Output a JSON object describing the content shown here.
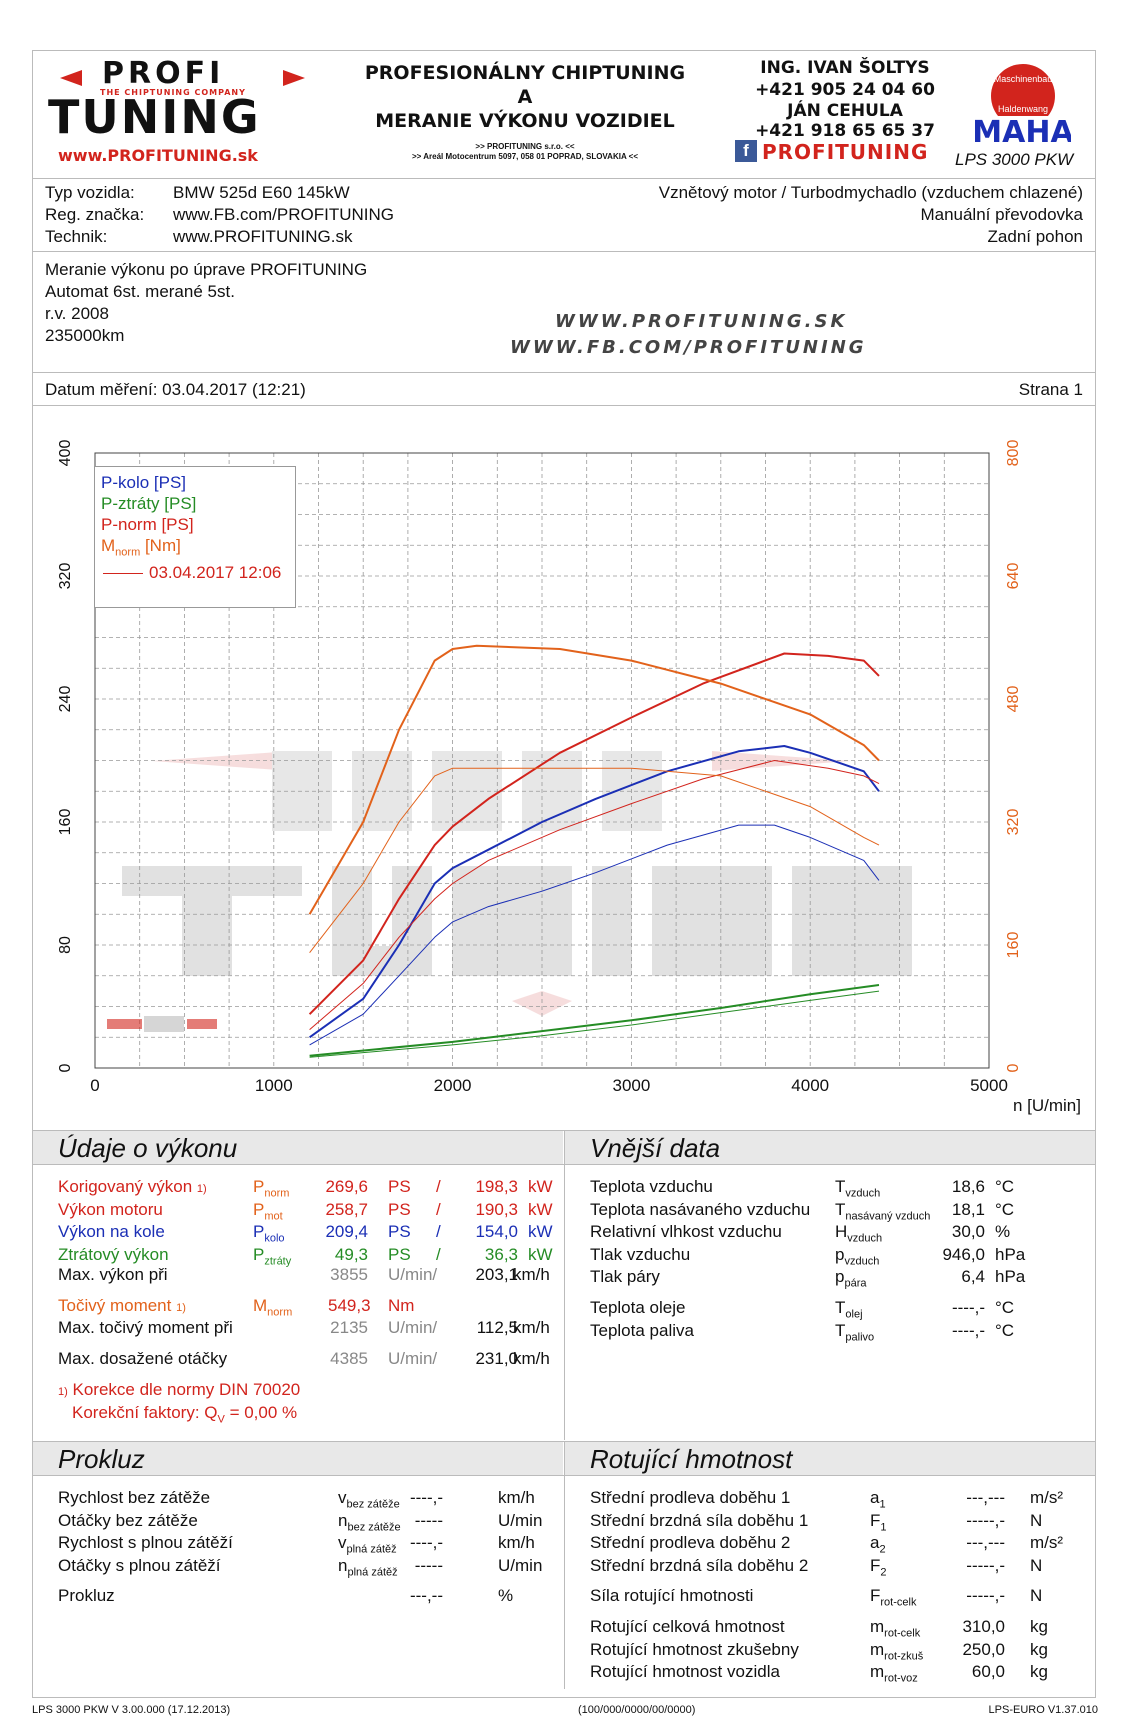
{
  "header": {
    "logo_profi": "PROFI",
    "logo_tuning": "TUNING",
    "logo_tagline": "THE CHIPTUNING COMPANY",
    "logo_url": "www.PROFITUNING.sk",
    "title_line1": "PROFESIONÁLNY CHIPTUNING",
    "title_line2": "A",
    "title_line3": "MERANIE VÝKONU VOZIDIEL",
    "address_line1": ">> PROFITUNING s.r.o. <<",
    "address_line2": ">> Areál Motocentrum 5097, 058 01 POPRAD, SLOVAKIA <<",
    "contact_name1": "ING. IVAN ŠOLTYS",
    "contact_phone1": "+421 905 24 04 60",
    "contact_name2": "JÁN CEHULA",
    "contact_phone2": "+421 918 65 65 37",
    "fb_label": "PROFITUNING",
    "maha_brand": "MAHA",
    "maha_ring_top": "Maschinenbau",
    "maha_ring_bottom": "Haldenwang",
    "maha_model": "LPS 3000 PKW"
  },
  "vehicle": {
    "type_label": "Typ vozidla:",
    "type_value": "BMW 525d E60 145kW",
    "reg_label": "Reg. značka:",
    "reg_value": "www.FB.com/PROFITUNING",
    "tech_label": "Technik:",
    "tech_value": "www.PROFITUNING.sk",
    "engine": "Vznětový motor / Turbodmychadlo (vzduchem chlazené)",
    "gearbox": "Manuální převodovka",
    "drive": "Zadní pohon"
  },
  "notes": {
    "line1": "Meranie výkonu po úprave PROFITUNING",
    "line2": "Automat 6st. merané 5st.",
    "line3": "r.v. 2008",
    "line4": "235000km",
    "url1": "WWW.PROFITUNING.SK",
    "url2": "WWW.FB.COM/PROFITUNING"
  },
  "meta": {
    "date": "Datum měření: 03.04.2017 (12:21)",
    "page": "Strana 1"
  },
  "chart_data": {
    "type": "line",
    "x_label": "n [U/min]",
    "xlim": [
      0,
      5000
    ],
    "ylim_left": [
      0,
      400
    ],
    "ylim_right": [
      0,
      800
    ],
    "x_ticks": [
      "0",
      "1000",
      "2000",
      "3000",
      "4000",
      "5000"
    ],
    "y_ticks_left": [
      "0",
      "80",
      "160",
      "240",
      "320",
      "400"
    ],
    "y_ticks_right": [
      "0",
      "160",
      "320",
      "480",
      "640",
      "800"
    ],
    "legend": [
      {
        "label": "P-kolo [PS]",
        "color": "#1b2fb5"
      },
      {
        "label": "P-ztráty [PS]",
        "color": "#258c25"
      },
      {
        "label": "P-norm [PS]",
        "color": "#d2241d"
      },
      {
        "label": "M",
        "sub": "norm",
        "suffix": " [Nm]",
        "color": "#e2621b"
      }
    ],
    "legend_run": "03.04.2017 12:06",
    "series": [
      {
        "name": "P-kolo [PS]",
        "axis": "left",
        "color": "#1b2fb5",
        "width": 2,
        "x": [
          1200,
          1500,
          1700,
          1900,
          2000,
          2200,
          2500,
          2800,
          3200,
          3600,
          3855,
          4000,
          4300,
          4385
        ],
        "y": [
          20,
          45,
          80,
          120,
          130,
          142,
          160,
          175,
          193,
          206,
          209.4,
          205,
          193,
          180
        ]
      },
      {
        "name": "P-kolo [PS] ref",
        "axis": "left",
        "color": "#1b2fb5",
        "width": 1,
        "x": [
          1200,
          1500,
          1700,
          1900,
          2000,
          2200,
          2500,
          2800,
          3200,
          3600,
          3800,
          4000,
          4300,
          4385
        ],
        "y": [
          15,
          35,
          60,
          85,
          95,
          105,
          115,
          127,
          145,
          158,
          158,
          150,
          135,
          122
        ]
      },
      {
        "name": "P-ztráty [PS]",
        "axis": "left",
        "color": "#258c25",
        "width": 2,
        "x": [
          1200,
          2000,
          2500,
          3000,
          3500,
          4000,
          4385
        ],
        "y": [
          8,
          17,
          24,
          31,
          39,
          48,
          54
        ]
      },
      {
        "name": "P-ztráty [PS] ref",
        "axis": "left",
        "color": "#258c25",
        "width": 1,
        "x": [
          1200,
          2000,
          2500,
          3000,
          3500,
          4000,
          4385
        ],
        "y": [
          7,
          15,
          21,
          28,
          36,
          44,
          50
        ]
      },
      {
        "name": "P-norm [PS]",
        "axis": "left",
        "color": "#d2241d",
        "width": 2,
        "x": [
          1200,
          1500,
          1700,
          1900,
          2000,
          2200,
          2600,
          3000,
          3400,
          3855,
          4100,
          4300,
          4385
        ],
        "y": [
          35,
          70,
          110,
          145,
          157,
          175,
          205,
          228,
          250,
          269.6,
          268,
          265,
          255
        ]
      },
      {
        "name": "P-norm [PS] ref",
        "axis": "left",
        "color": "#d2241d",
        "width": 1,
        "x": [
          1200,
          1500,
          1700,
          1900,
          2000,
          2200,
          2600,
          3000,
          3400,
          3800,
          4100,
          4300,
          4385
        ],
        "y": [
          25,
          55,
          85,
          110,
          120,
          135,
          155,
          172,
          188,
          200,
          195,
          190,
          185
        ]
      },
      {
        "name": "Mnorm [Nm]",
        "axis": "right",
        "color": "#e2621b",
        "width": 2,
        "x": [
          1200,
          1500,
          1700,
          1900,
          2000,
          2135,
          2600,
          3000,
          3500,
          4000,
          4300,
          4385
        ],
        "y": [
          200,
          320,
          440,
          530,
          545,
          549.3,
          545,
          530,
          500,
          460,
          420,
          400
        ]
      },
      {
        "name": "Mnorm [Nm] ref",
        "axis": "right",
        "color": "#e2621b",
        "width": 1,
        "x": [
          1200,
          1500,
          1700,
          1900,
          2000,
          2500,
          3000,
          3500,
          4000,
          4300,
          4385
        ],
        "y": [
          150,
          240,
          320,
          380,
          390,
          390,
          390,
          380,
          340,
          300,
          290
        ]
      }
    ]
  },
  "performance": {
    "title": "Údaje o výkonu",
    "rows": [
      {
        "label": "Korigovaný výkon",
        "note": "1)",
        "sym": "P",
        "sub": "norm",
        "v1": "269,6",
        "u1": "PS",
        "sep": "/",
        "v2": "198,3",
        "u2": "kW",
        "color": "red"
      },
      {
        "label": "Výkon motoru",
        "note": "",
        "sym": "P",
        "sub": "mot",
        "v1": "258,7",
        "u1": "PS",
        "sep": "/",
        "v2": "190,3",
        "u2": "kW",
        "color": "red"
      },
      {
        "label": "Výkon na kole",
        "note": "",
        "sym": "P",
        "sub": "kolo",
        "v1": "209,4",
        "u1": "PS",
        "sep": "/",
        "v2": "154,0",
        "u2": "kW",
        "color": "blue"
      },
      {
        "label": "Ztrátový výkon",
        "note": "",
        "sym": "P",
        "sub": "ztráty",
        "v1": "49,3",
        "u1": "PS",
        "sep": "/",
        "v2": "36,3",
        "u2": "kW",
        "color": "green"
      }
    ],
    "max_power_label": "Max. výkon při",
    "max_power_rpm": "3855",
    "max_power_rpm_unit": "U/min/",
    "max_power_speed": "203,1",
    "max_power_speed_unit": "km/h",
    "torque_label": "Točivý moment",
    "torque_note": "1)",
    "torque_sym": "M",
    "torque_sub": "norm",
    "torque_value": "549,3",
    "torque_unit": "Nm",
    "max_torque_label": "Max. točivý moment při",
    "max_torque_rpm": "2135",
    "max_torque_rpm_unit": "U/min/",
    "max_torque_speed": "112,5",
    "max_torque_speed_unit": "km/h",
    "max_rpm_label": "Max. dosažené otáčky",
    "max_rpm": "4385",
    "max_rpm_unit": "U/min/",
    "max_rpm_speed": "231,0",
    "max_rpm_speed_unit": "km/h",
    "norm_note_num": "1)",
    "norm_note": "Korekce dle normy DIN 70020",
    "factor_label": "Korekční faktory: Q",
    "factor_sub": "V",
    "factor_value": " =    0,00 %"
  },
  "external": {
    "title": "Vnější data",
    "rows": [
      {
        "label": "Teplota vzduchu",
        "sym": "T",
        "sub": "vzduch",
        "value": "18,6",
        "unit": "°C"
      },
      {
        "label": "Teplota nasávaného vzduchu",
        "sym": "T",
        "sub": "nasávaný vzduch",
        "value": "18,1",
        "unit": "°C"
      },
      {
        "label": "Relativní vlhkost vzduchu",
        "sym": "H",
        "sub": "vzduch",
        "value": "30,0",
        "unit": "%"
      },
      {
        "label": "Tlak vzduchu",
        "sym": "p",
        "sub": "vzduch",
        "value": "946,0",
        "unit": "hPa"
      },
      {
        "label": "Tlak páry",
        "sym": "p",
        "sub": "pára",
        "value": "6,4",
        "unit": "hPa"
      },
      {
        "label": "Teplota oleje",
        "sym": "T",
        "sub": "olej",
        "value": "----,-",
        "unit": "°C"
      },
      {
        "label": "Teplota paliva",
        "sym": "T",
        "sub": "palivo",
        "value": "----,-",
        "unit": "°C"
      }
    ]
  },
  "slip": {
    "title": "Prokluz",
    "rows": [
      {
        "label": "Rychlost bez zátěže",
        "sym": "v",
        "sub": "bez zátěže",
        "value": "----,-",
        "unit": "km/h"
      },
      {
        "label": "Otáčky bez zátěže",
        "sym": "n",
        "sub": "bez zátěže",
        "value": "-----",
        "unit": "U/min"
      },
      {
        "label": "Rychlost s plnou zátěží",
        "sym": "v",
        "sub": "plná zátěž",
        "value": "----,-",
        "unit": "km/h"
      },
      {
        "label": "Otáčky s plnou zátěží",
        "sym": "n",
        "sub": "plná zátěž",
        "value": "-----",
        "unit": "U/min"
      },
      {
        "label": "Prokluz",
        "sym": "",
        "sub": "",
        "value": "---,--",
        "unit": "%"
      }
    ]
  },
  "rotating": {
    "title": "Rotující hmotnost",
    "rows": [
      {
        "label": "Střední prodleva doběhu 1",
        "sym": "a",
        "sub": "1",
        "value": "---,---",
        "unit": "m/s²"
      },
      {
        "label": "Střední brzdná síla doběhu 1",
        "sym": "F",
        "sub": "1",
        "value": "-----,-",
        "unit": "N"
      },
      {
        "label": "Střední prodleva doběhu 2",
        "sym": "a",
        "sub": "2",
        "value": "---,---",
        "unit": "m/s²"
      },
      {
        "label": "Střední brzdná síla doběhu 2",
        "sym": "F",
        "sub": "2",
        "value": "-----,-",
        "unit": "N"
      },
      {
        "label": "Síla rotující hmotnosti",
        "sym": "F",
        "sub": "rot-celk",
        "value": "-----,-",
        "unit": "N"
      },
      {
        "label": "Rotující celková hmotnost",
        "sym": "m",
        "sub": "rot-celk",
        "value": "310,0",
        "unit": "kg"
      },
      {
        "label": "Rotující hmotnost zkušebny",
        "sym": "m",
        "sub": "rot-zkuš",
        "value": "250,0",
        "unit": "kg"
      },
      {
        "label": "Rotující hmotnost vozidla",
        "sym": "m",
        "sub": "rot-voz",
        "value": "60,0",
        "unit": "kg"
      }
    ]
  },
  "footer": {
    "left": "LPS 3000 PKW V 3.00.000 (17.12.2013)",
    "center": "(100/000/0000/00/0000)",
    "right": "LPS-EURO V1.37.010"
  }
}
